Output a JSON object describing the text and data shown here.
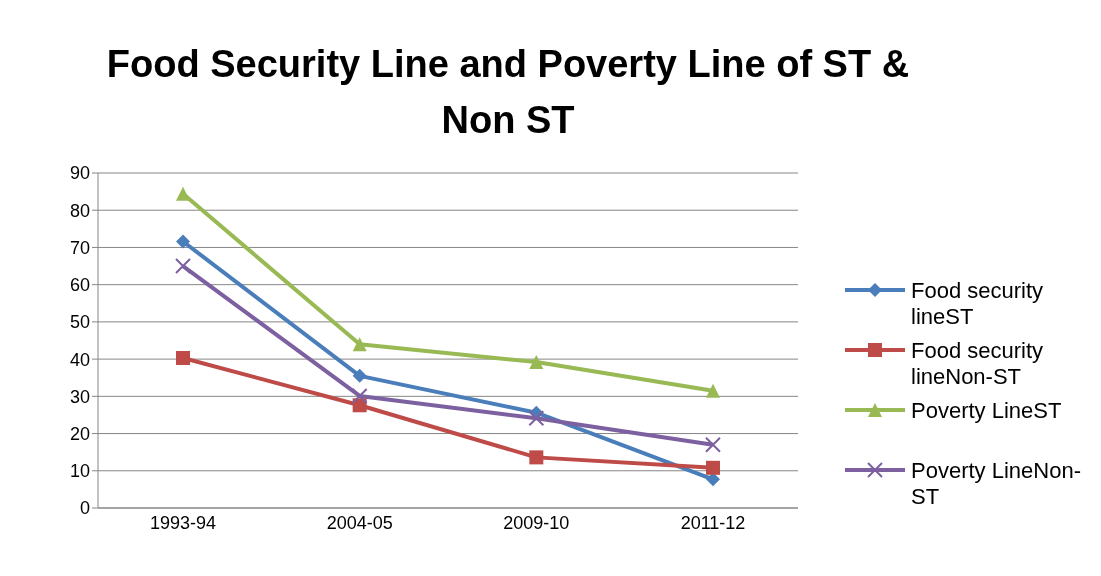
{
  "chart_data": {
    "type": "line",
    "title": "Food Security Line and Poverty Line of ST & Non ST",
    "categories": [
      "1993-94",
      "2004-05",
      "2009-10",
      "2011-12"
    ],
    "series": [
      {
        "name": "Food security lineST",
        "color": "#4a7ebb",
        "marker": "diamond",
        "values": [
          71.6,
          35.5,
          25.6,
          7.7
        ]
      },
      {
        "name": "Food security lineNon-ST",
        "color": "#be4b48",
        "marker": "square",
        "values": [
          40.3,
          27.6,
          13.6,
          10.8
        ]
      },
      {
        "name": "Poverty LineST",
        "color": "#98b954",
        "marker": "triangle",
        "values": [
          84.4,
          44,
          39.2,
          31.5
        ]
      },
      {
        "name": "Poverty LineNon-ST",
        "color": "#7d60a0",
        "marker": "cross",
        "values": [
          65,
          30.1,
          24.1,
          17
        ]
      }
    ],
    "ylim": [
      0,
      90
    ],
    "yticks": [
      0,
      10,
      20,
      30,
      40,
      50,
      60,
      70,
      80,
      90
    ],
    "grid": "y",
    "legend": "right",
    "line_style": "solid"
  }
}
